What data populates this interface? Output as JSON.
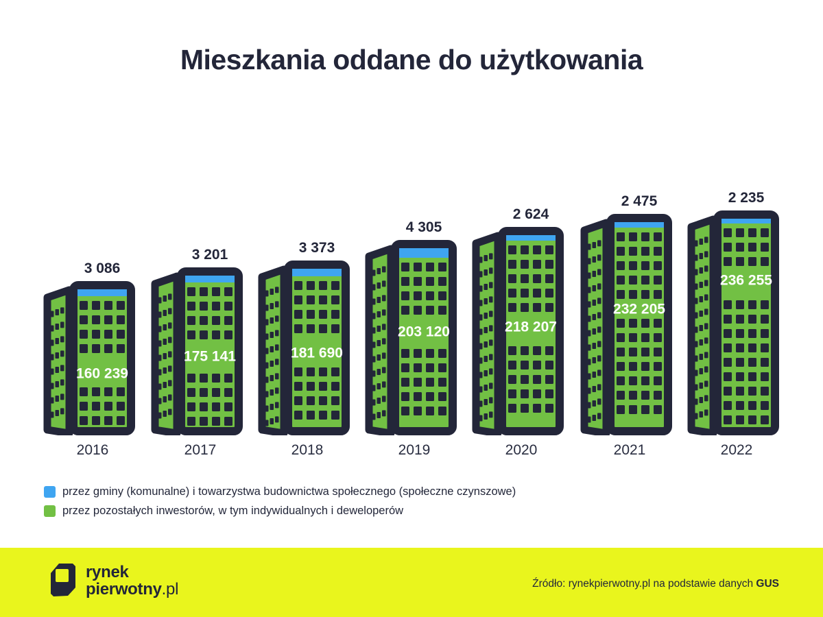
{
  "colors": {
    "navy": "#232639",
    "green": "#72c044",
    "blue": "#3fa5f1",
    "yellow": "#e9f51d",
    "background": "#ffffff",
    "building_value_text": "#ffffff"
  },
  "chart_data": {
    "type": "bar",
    "style": "building-pictogram",
    "title": "Mieszkania oddane do użytkowania",
    "categories": [
      "2016",
      "2017",
      "2018",
      "2019",
      "2020",
      "2021",
      "2022"
    ],
    "series": [
      {
        "name": "przez gminy (komunalne) i towarzystwa budownictwa społecznego (społeczne czynszowe)",
        "color": "#3fa5f1",
        "values": [
          3086,
          3201,
          3373,
          4305,
          2624,
          2475,
          2235
        ],
        "labels": [
          "3 086",
          "3 201",
          "3 373",
          "4 305",
          "2 624",
          "2 475",
          "2 235"
        ]
      },
      {
        "name": "przez pozostałych inwestorów, w tym indywidualnych i deweloperów",
        "color": "#72c044",
        "values": [
          160239,
          175141,
          181690,
          203120,
          218207,
          232205,
          236255
        ],
        "labels": [
          "160 239",
          "175 141",
          "181 690",
          "203 120",
          "218 207",
          "232 205",
          "236 255"
        ]
      }
    ],
    "legend_position": "bottom",
    "grid": false
  },
  "footer": {
    "logo": {
      "line1": "rynek",
      "line2": "pierwotny",
      "suffix": ".pl"
    },
    "source_prefix": "Źródło: rynekpierwotny.pl na podstawie danych ",
    "source_bold": "GUS"
  }
}
